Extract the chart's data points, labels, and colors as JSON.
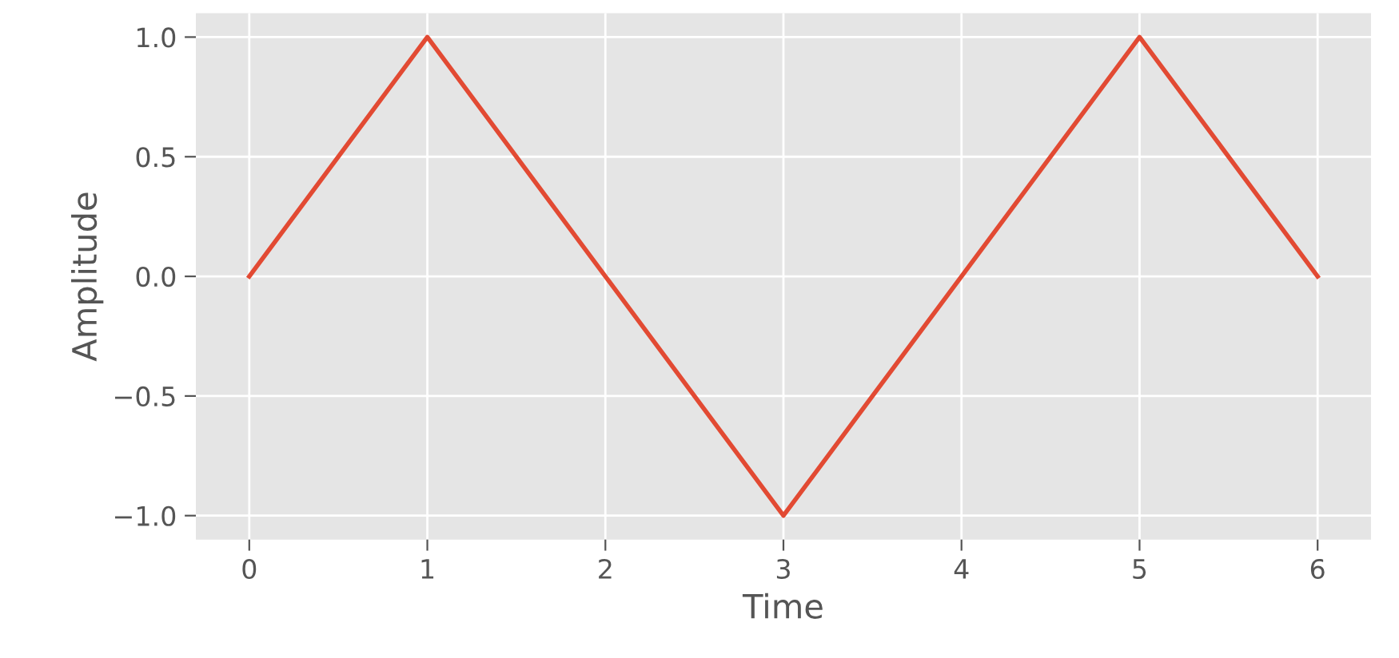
{
  "chart_data": {
    "type": "line",
    "xlabel": "Time",
    "ylabel": "Amplitude",
    "x": [
      0,
      1,
      2,
      3,
      4,
      5,
      6
    ],
    "series": [
      {
        "color": "#e24a33",
        "values": [
          0,
          1,
          0,
          -1,
          0,
          1,
          0
        ]
      }
    ],
    "xlim": [
      -0.3,
      6.3
    ],
    "ylim": [
      -1.1,
      1.1
    ],
    "xticks": [
      0,
      1,
      2,
      3,
      4,
      5,
      6
    ],
    "yticks": [
      {
        "value": -1,
        "label": "−1.0"
      },
      {
        "value": -0.5,
        "label": "−0.5"
      },
      {
        "value": 0,
        "label": "0.0"
      },
      {
        "value": 0.5,
        "label": "0.5"
      },
      {
        "value": 1,
        "label": "1.0"
      }
    ],
    "grid": true,
    "marker": "none",
    "line_style": "solid"
  }
}
